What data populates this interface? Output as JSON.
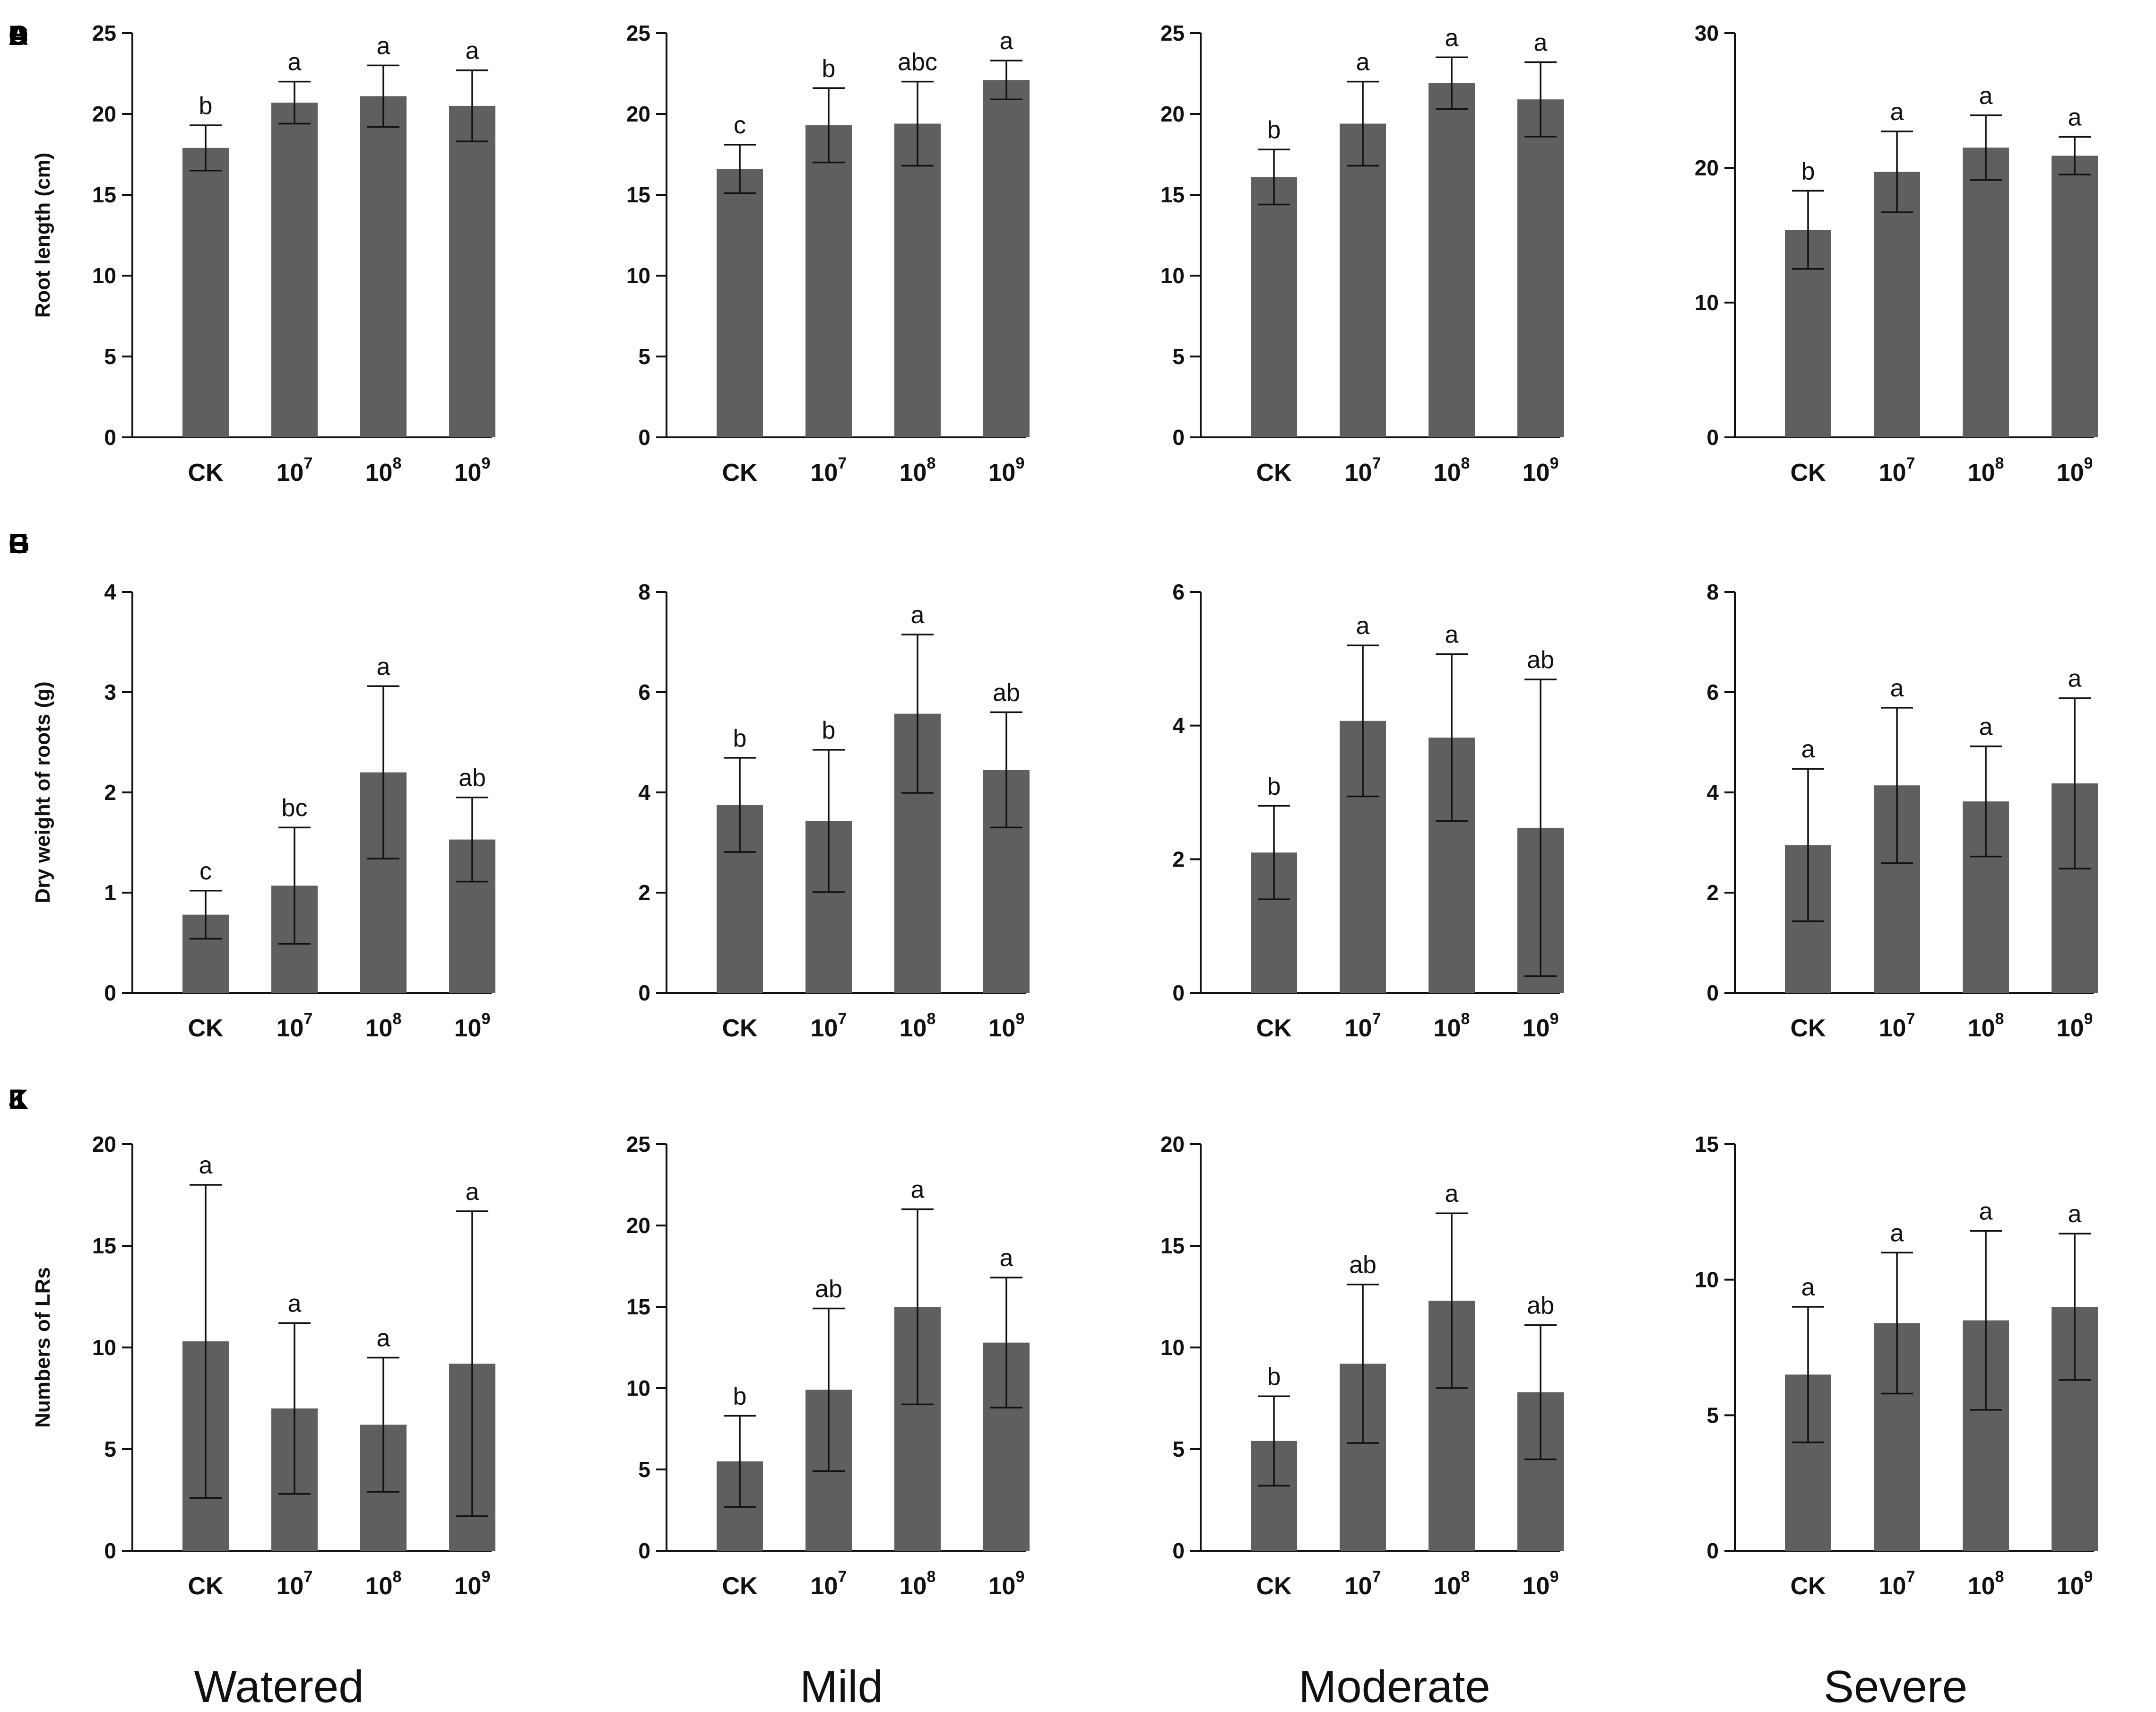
{
  "figure_conditions": [
    "Watered",
    "Mild",
    "Moderate",
    "Severe"
  ],
  "colors": {
    "bar": "#5f5f5f",
    "axis": "#111111",
    "background": "#ffffff"
  },
  "chart_data": [
    {
      "panel": "A",
      "type": "bar",
      "ylabel": "Root length (cm)",
      "condition": "Watered",
      "categories": [
        "CK",
        "10^7",
        "10^8",
        "10^9"
      ],
      "values": [
        17.9,
        20.7,
        21.1,
        20.5
      ],
      "errors": [
        1.4,
        1.3,
        1.9,
        2.2
      ],
      "significance": [
        "b",
        "a",
        "a",
        "a"
      ],
      "ylim": [
        0,
        25
      ],
      "yticks": [
        0,
        5,
        10,
        15,
        20,
        25
      ]
    },
    {
      "panel": "B",
      "type": "bar",
      "ylabel": "",
      "condition": "Mild",
      "categories": [
        "CK",
        "10^7",
        "10^8",
        "10^9"
      ],
      "values": [
        16.6,
        19.3,
        19.4,
        22.1
      ],
      "errors": [
        1.5,
        2.3,
        2.6,
        1.2
      ],
      "significance": [
        "c",
        "b",
        "abc",
        "a"
      ],
      "ylim": [
        0,
        25
      ],
      "yticks": [
        0,
        5,
        10,
        15,
        20,
        25
      ]
    },
    {
      "panel": "C",
      "type": "bar",
      "ylabel": "",
      "condition": "Moderate",
      "categories": [
        "CK",
        "10^7",
        "10^8",
        "10^9"
      ],
      "values": [
        16.1,
        19.4,
        21.9,
        20.9
      ],
      "errors": [
        1.7,
        2.6,
        1.6,
        2.3
      ],
      "significance": [
        "b",
        "a",
        "a",
        "a"
      ],
      "ylim": [
        0,
        25
      ],
      "yticks": [
        0,
        5,
        10,
        15,
        20,
        25
      ]
    },
    {
      "panel": "D",
      "type": "bar",
      "ylabel": "",
      "condition": "Severe",
      "categories": [
        "CK",
        "10^7",
        "10^8",
        "10^9"
      ],
      "values": [
        15.4,
        19.7,
        21.5,
        20.9
      ],
      "errors": [
        2.9,
        3.0,
        2.4,
        1.4
      ],
      "significance": [
        "b",
        "a",
        "a",
        "a"
      ],
      "ylim": [
        0,
        30
      ],
      "yticks": [
        0,
        10,
        20,
        30
      ]
    },
    {
      "panel": "E",
      "type": "bar",
      "ylabel": "Dry weight of roots (g)",
      "condition": "Watered",
      "categories": [
        "CK",
        "10^7",
        "10^8",
        "10^9"
      ],
      "values": [
        0.78,
        1.07,
        2.2,
        1.53
      ],
      "errors": [
        0.24,
        0.58,
        0.86,
        0.42
      ],
      "significance": [
        "c",
        "bc",
        "a",
        "ab"
      ],
      "ylim": [
        0,
        4
      ],
      "yticks": [
        0,
        1,
        2,
        3,
        4
      ]
    },
    {
      "panel": "F",
      "type": "bar",
      "ylabel": "",
      "condition": "Mild",
      "categories": [
        "CK",
        "10^7",
        "10^8",
        "10^9"
      ],
      "values": [
        3.75,
        3.43,
        5.57,
        4.45
      ],
      "errors": [
        0.94,
        1.42,
        1.58,
        1.15
      ],
      "significance": [
        "b",
        "b",
        "a",
        "ab"
      ],
      "ylim": [
        0,
        8
      ],
      "yticks": [
        0,
        2,
        4,
        6,
        8
      ]
    },
    {
      "panel": "G",
      "type": "bar",
      "ylabel": "",
      "condition": "Moderate",
      "categories": [
        "CK",
        "10^7",
        "10^8",
        "10^9"
      ],
      "values": [
        2.1,
        4.07,
        3.82,
        2.47
      ],
      "errors": [
        0.7,
        1.13,
        1.25,
        2.22
      ],
      "significance": [
        "b",
        "a",
        "a",
        "ab"
      ],
      "ylim": [
        0,
        6
      ],
      "yticks": [
        0,
        2,
        4,
        6
      ]
    },
    {
      "panel": "H",
      "type": "bar",
      "ylabel": "",
      "condition": "Severe",
      "categories": [
        "CK",
        "10^7",
        "10^8",
        "10^9"
      ],
      "values": [
        2.95,
        4.14,
        3.82,
        4.18
      ],
      "errors": [
        1.52,
        1.55,
        1.1,
        1.7
      ],
      "significance": [
        "a",
        "a",
        "a",
        "a"
      ],
      "ylim": [
        0,
        8
      ],
      "yticks": [
        0,
        2,
        4,
        6,
        8
      ]
    },
    {
      "panel": "I",
      "type": "bar",
      "ylabel": "Numbers of LRs",
      "condition": "Watered",
      "categories": [
        "CK",
        "10^7",
        "10^8",
        "10^9"
      ],
      "values": [
        10.3,
        7.0,
        6.2,
        9.2
      ],
      "errors": [
        7.7,
        4.2,
        3.3,
        7.5
      ],
      "significance": [
        "a",
        "a",
        "a",
        "a"
      ],
      "ylim": [
        0,
        20
      ],
      "yticks": [
        0,
        5,
        10,
        15,
        20
      ]
    },
    {
      "panel": "J",
      "type": "bar",
      "ylabel": "",
      "condition": "Mild",
      "categories": [
        "CK",
        "10^7",
        "10^8",
        "10^9"
      ],
      "values": [
        5.5,
        9.9,
        15.0,
        12.8
      ],
      "errors": [
        2.8,
        5.0,
        6.0,
        4.0
      ],
      "significance": [
        "b",
        "ab",
        "a",
        "a"
      ],
      "ylim": [
        0,
        25
      ],
      "yticks": [
        0,
        5,
        10,
        15,
        20,
        25
      ]
    },
    {
      "panel": "K",
      "type": "bar",
      "ylabel": "",
      "condition": "Moderate",
      "categories": [
        "CK",
        "10^7",
        "10^8",
        "10^9"
      ],
      "values": [
        5.4,
        9.2,
        12.3,
        7.8
      ],
      "errors": [
        2.2,
        3.9,
        4.3,
        3.3
      ],
      "significance": [
        "b",
        "ab",
        "a",
        "ab"
      ],
      "ylim": [
        0,
        20
      ],
      "yticks": [
        0,
        5,
        10,
        15,
        20
      ]
    },
    {
      "panel": "L",
      "type": "bar",
      "ylabel": "",
      "condition": "Severe",
      "categories": [
        "CK",
        "10^7",
        "10^8",
        "10^9"
      ],
      "values": [
        6.5,
        8.4,
        8.5,
        9.0
      ],
      "errors": [
        2.5,
        2.6,
        3.3,
        2.7
      ],
      "significance": [
        "a",
        "a",
        "a",
        "a"
      ],
      "ylim": [
        0,
        15
      ],
      "yticks": [
        0,
        5,
        10,
        15
      ]
    }
  ]
}
